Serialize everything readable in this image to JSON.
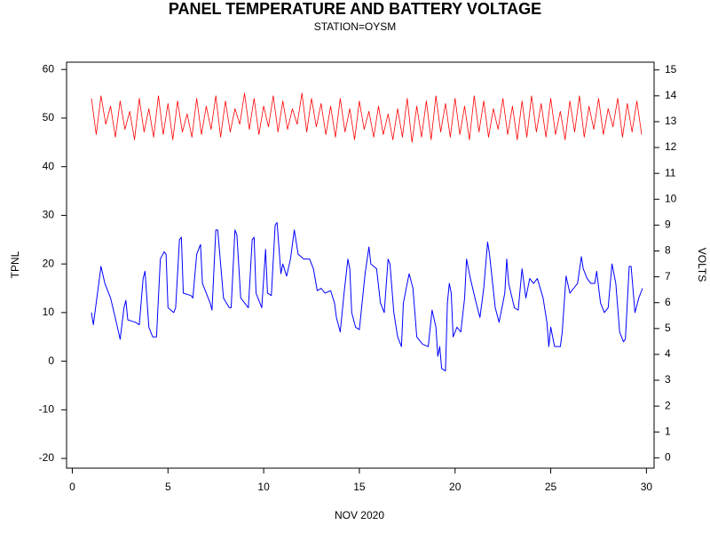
{
  "chart_data": {
    "type": "line",
    "title": "PANEL TEMPERATURE AND BATTERY VOLTAGE",
    "subtitle": "STATION=OYSM",
    "xlabel": "NOV 2020",
    "ylabel": "TPNL",
    "y2label": "VOLTS",
    "xlim": [
      -0.3,
      30.4
    ],
    "xticks": [
      0,
      5,
      10,
      15,
      20,
      25,
      30
    ],
    "ylim": [
      -22,
      61.5
    ],
    "yticks": [
      -20,
      -10,
      0,
      10,
      20,
      30,
      40,
      50,
      60
    ],
    "y2lim": [
      -0.4,
      15.3
    ],
    "y2ticks": [
      0,
      1,
      2,
      3,
      4,
      5,
      6,
      7,
      8,
      9,
      10,
      11,
      12,
      13,
      14,
      15
    ],
    "series": [
      {
        "color": "#0000ff",
        "axis": "y",
        "x": [
          1.0,
          1.1,
          1.5,
          1.7,
          2.0,
          2.3,
          2.5,
          2.7,
          2.8,
          2.9,
          3.3,
          3.5,
          3.7,
          3.8,
          4.0,
          4.2,
          4.4,
          4.6,
          4.8,
          4.9,
          5.0,
          5.3,
          5.4,
          5.6,
          5.7,
          5.8,
          6.2,
          6.3,
          6.5,
          6.7,
          6.8,
          7.2,
          7.3,
          7.5,
          7.6,
          7.9,
          8.2,
          8.3,
          8.5,
          8.6,
          8.8,
          9.2,
          9.4,
          9.5,
          9.6,
          9.9,
          10.1,
          10.2,
          10.4,
          10.6,
          10.7,
          10.9,
          11.0,
          11.2,
          11.4,
          11.6,
          11.8,
          12.1,
          12.4,
          12.6,
          12.8,
          13.0,
          13.2,
          13.5,
          13.7,
          13.8,
          14.0,
          14.2,
          14.4,
          14.5,
          14.6,
          14.8,
          15.0,
          15.3,
          15.5,
          15.6,
          15.9,
          16.1,
          16.3,
          16.5,
          16.6,
          16.8,
          17.0,
          17.2,
          17.3,
          17.6,
          17.8,
          18.0,
          18.3,
          18.6,
          18.8,
          19.0,
          19.1,
          19.2,
          19.3,
          19.5,
          19.6,
          19.7,
          19.8,
          19.9,
          20.1,
          20.3,
          20.5,
          20.6,
          20.8,
          21.1,
          21.3,
          21.5,
          21.7,
          21.8,
          22.1,
          22.3,
          22.6,
          22.7,
          22.8,
          23.1,
          23.3,
          23.5,
          23.7,
          23.9,
          24.1,
          24.3,
          24.6,
          24.8,
          24.9,
          25.0,
          25.2,
          25.5,
          25.6,
          25.8,
          26.0,
          26.2,
          26.4,
          26.6,
          26.7,
          26.9,
          27.1,
          27.3,
          27.4,
          27.6,
          27.8,
          28.0,
          28.2,
          28.4,
          28.6,
          28.8,
          28.9,
          29.1,
          29.2,
          29.4,
          29.6,
          29.8
        ],
        "values": [
          10,
          7.5,
          19.5,
          16,
          13,
          8,
          4.5,
          11,
          12.5,
          8.5,
          8,
          7.5,
          17,
          18.5,
          7,
          5,
          5,
          21,
          22.5,
          22,
          11,
          10,
          11,
          25,
          25.5,
          14,
          13.5,
          13,
          22,
          24,
          16,
          12,
          10.5,
          27,
          27,
          13,
          11,
          11,
          27,
          26,
          13,
          11,
          25,
          25.5,
          14,
          11,
          23,
          14,
          13.5,
          28,
          28.5,
          18,
          20,
          17.5,
          21,
          27,
          22,
          21,
          21,
          19,
          14.5,
          15,
          14,
          14.5,
          12,
          9,
          6,
          14,
          21,
          19,
          10,
          7,
          6.5,
          18,
          23.5,
          20,
          19,
          12,
          10,
          21,
          20,
          10,
          5,
          3,
          12,
          18,
          15,
          5,
          3.5,
          3,
          10.5,
          7,
          1,
          3,
          -1.5,
          -2,
          12,
          16,
          14,
          5,
          7,
          6,
          13,
          21,
          17,
          12,
          9,
          15,
          24.5,
          22,
          11,
          8,
          14,
          21,
          16,
          11,
          10.5,
          19,
          13,
          17,
          16,
          17,
          13,
          8,
          3,
          7,
          3,
          3,
          6,
          17.5,
          14,
          15,
          16,
          21.5,
          19,
          17,
          16,
          16,
          18.5,
          12,
          10,
          11,
          20,
          16,
          6,
          4,
          4.5,
          19.5,
          19.5,
          10,
          13,
          15
        ]
      },
      {
        "color": "#ff0000",
        "axis": "y2",
        "x": [
          1,
          1.25,
          1.5,
          1.75,
          2,
          2.25,
          2.5,
          2.75,
          3,
          3.25,
          3.5,
          3.75,
          4,
          4.25,
          4.5,
          4.75,
          5,
          5.25,
          5.5,
          5.75,
          6,
          6.25,
          6.5,
          6.75,
          7,
          7.25,
          7.5,
          7.75,
          8,
          8.25,
          8.5,
          8.75,
          9,
          9.25,
          9.5,
          9.75,
          10,
          10.25,
          10.5,
          10.75,
          11,
          11.25,
          11.5,
          11.75,
          12,
          12.25,
          12.5,
          12.75,
          13,
          13.25,
          13.5,
          13.75,
          14,
          14.25,
          14.5,
          14.75,
          15,
          15.25,
          15.5,
          15.75,
          16,
          16.25,
          16.5,
          16.75,
          17,
          17.25,
          17.5,
          17.75,
          18,
          18.25,
          18.5,
          18.75,
          19,
          19.25,
          19.5,
          19.75,
          20,
          20.25,
          20.5,
          20.75,
          21,
          21.25,
          21.5,
          21.75,
          22,
          22.25,
          22.5,
          22.75,
          23,
          23.25,
          23.5,
          23.75,
          24,
          24.25,
          24.5,
          24.75,
          25,
          25.25,
          25.5,
          25.75,
          26,
          26.25,
          26.5,
          26.75,
          27,
          27.25,
          27.5,
          27.75,
          28,
          28.25,
          28.5,
          28.75,
          29,
          29.25,
          29.5,
          29.75
        ],
        "values": [
          13.9,
          12.5,
          14.0,
          12.9,
          13.6,
          12.4,
          13.8,
          12.7,
          13.4,
          12.3,
          13.9,
          12.6,
          13.5,
          12.4,
          14.0,
          12.5,
          13.7,
          12.3,
          13.8,
          12.6,
          13.3,
          12.4,
          13.9,
          12.5,
          13.6,
          12.7,
          14.0,
          12.4,
          13.8,
          12.6,
          13.5,
          12.9,
          14.1,
          12.7,
          13.9,
          12.5,
          13.6,
          12.8,
          14.0,
          12.6,
          13.8,
          12.7,
          13.5,
          12.9,
          14.1,
          12.6,
          13.9,
          12.8,
          13.7,
          12.5,
          13.6,
          12.4,
          13.9,
          12.6,
          13.5,
          12.3,
          13.8,
          12.7,
          13.4,
          12.4,
          13.6,
          12.5,
          13.3,
          12.3,
          13.5,
          12.4,
          13.9,
          12.2,
          13.6,
          12.4,
          13.8,
          12.3,
          14.0,
          12.6,
          13.7,
          12.4,
          13.9,
          12.5,
          13.6,
          12.3,
          14.0,
          12.6,
          13.8,
          12.4,
          13.5,
          12.7,
          13.9,
          12.5,
          13.6,
          12.3,
          13.8,
          12.4,
          14.0,
          12.6,
          13.7,
          12.4,
          13.9,
          12.5,
          13.4,
          12.3,
          13.8,
          12.6,
          14.0,
          12.4,
          13.6,
          12.7,
          13.9,
          12.5,
          13.5,
          12.8,
          13.9,
          12.4,
          13.7,
          12.6,
          13.8,
          12.5
        ]
      }
    ]
  }
}
